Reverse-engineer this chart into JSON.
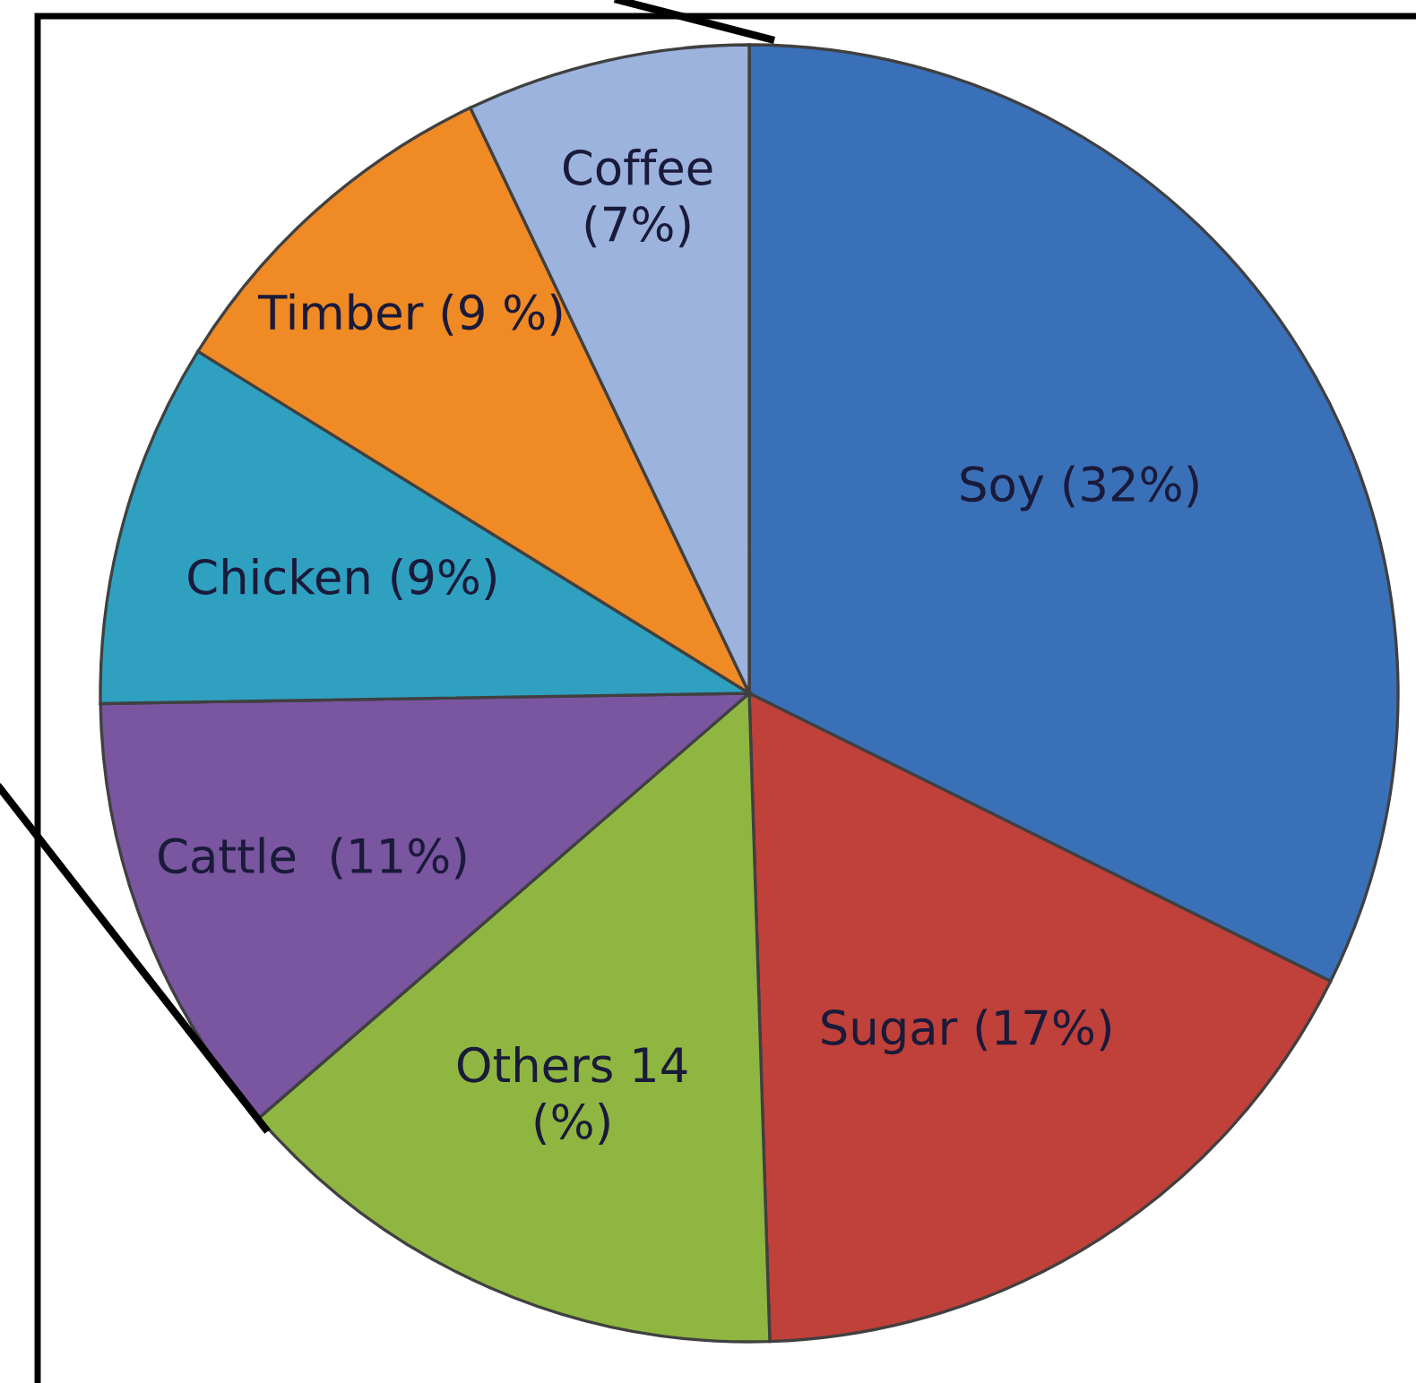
{
  "chart_data": {
    "type": "pie",
    "categories": [
      "Soy (32%)",
      "Sugar (17%)",
      "Others 14\n(%)",
      "Cattle  (11%)",
      "Chicken (9%)",
      "Timber (9 %)",
      "Coffee\n(7%)"
    ],
    "values": [
      32,
      17,
      14,
      11,
      9,
      9,
      7
    ],
    "colors": [
      "#3a70b8",
      "#c0403a",
      "#8fb640",
      "#7a55a0",
      "#2fa0c0",
      "#f08a24",
      "#9cb3de"
    ]
  }
}
